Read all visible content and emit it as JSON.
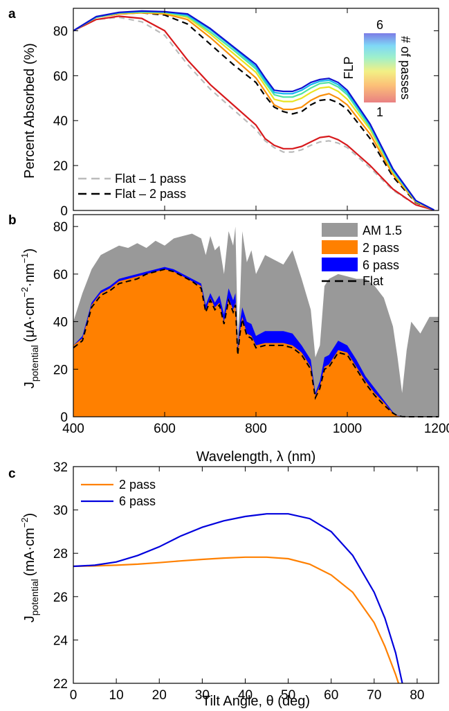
{
  "chart_data": [
    {
      "panel": "a",
      "type": "line",
      "ylabel": "Percent Absorbed (%)",
      "xlim": [
        400,
        1200
      ],
      "ylim": [
        0,
        90
      ],
      "yticks": [
        0,
        20,
        40,
        60,
        80
      ],
      "ytick_labels": [
        "0",
        "20",
        "40",
        "60",
        "80"
      ],
      "colorbar": {
        "title": "FLP",
        "side_label": "# of passes",
        "top": "6",
        "bottom": "1"
      },
      "x": [
        400,
        450,
        500,
        550,
        600,
        650,
        700,
        750,
        800,
        820,
        840,
        860,
        880,
        900,
        920,
        940,
        960,
        980,
        1000,
        1050,
        1100,
        1150,
        1190
      ],
      "series": [
        {
          "name": "Flat – 1 pass",
          "color": "#bbbbbb",
          "dash": "8 6",
          "values": [
            80,
            85,
            86,
            84,
            78,
            65,
            54,
            45,
            36,
            31,
            28,
            26,
            26,
            27,
            29,
            30.5,
            31,
            30,
            28,
            19,
            9,
            2.5,
            0.2
          ]
        },
        {
          "name": "Flat – 2 pass",
          "color": "#000000",
          "dash": "9 6",
          "values": [
            80,
            86,
            87.5,
            88,
            87,
            83,
            74,
            65,
            57,
            51,
            46,
            44,
            43,
            44,
            47,
            49,
            49.5,
            48,
            45,
            32,
            15,
            3.5,
            0.2
          ]
        },
        {
          "color": "#d7191c",
          "values": [
            80,
            85,
            86.5,
            85.5,
            80,
            67,
            56,
            47,
            38,
            32,
            29,
            27.5,
            27.5,
            28.5,
            30.5,
            32.5,
            33,
            31.5,
            29,
            20,
            9.5,
            2.5,
            0.2
          ]
        },
        {
          "color": "#f98e09",
          "values": [
            80,
            86,
            87.5,
            88,
            87.5,
            85,
            77,
            68,
            59,
            53,
            47,
            45,
            45,
            46,
            49,
            51,
            52,
            50,
            47,
            34,
            16,
            3.8,
            0.2
          ]
        },
        {
          "color": "#e8e421",
          "values": [
            80,
            86,
            87.8,
            88.2,
            88,
            86,
            78.5,
            70,
            61.5,
            55.5,
            49.5,
            48.5,
            48.5,
            50,
            52.5,
            54.5,
            55,
            53,
            49.5,
            36,
            17,
            4,
            0.2
          ]
        },
        {
          "color": "#4fe3a0",
          "values": [
            80,
            86,
            88,
            88.4,
            88.2,
            86.5,
            79.5,
            71.5,
            63,
            57,
            51.5,
            50.5,
            50.5,
            52,
            54.5,
            56.5,
            57,
            55,
            51.5,
            37,
            17.5,
            4.2,
            0.2
          ]
        },
        {
          "color": "#16b8ef",
          "values": [
            80,
            86.2,
            88,
            88.6,
            88.4,
            87,
            80.5,
            72.5,
            64,
            58,
            52.5,
            52,
            52,
            53.5,
            56,
            57.5,
            58,
            56,
            52.5,
            38,
            18,
            4.3,
            0.2
          ]
        },
        {
          "color": "#1010d0",
          "values": [
            80,
            86.3,
            88.2,
            88.8,
            88.5,
            87.5,
            81,
            73,
            65,
            59,
            53.5,
            53,
            53,
            54.5,
            57,
            58.3,
            58.8,
            57,
            53.5,
            38.5,
            18.5,
            4.4,
            0.2
          ]
        }
      ],
      "legend": [
        "Flat – 1 pass",
        "Flat – 2 pass"
      ]
    },
    {
      "panel": "b",
      "type": "area",
      "ylabel": "J_potential (μA·cm⁻²·nm⁻¹)",
      "xlabel": "Wavelength, λ (nm)",
      "xlim": [
        400,
        1200
      ],
      "ylim": [
        0,
        85
      ],
      "xticks": [
        400,
        600,
        800,
        1000,
        1200
      ],
      "xtick_labels": [
        "400",
        "600",
        "800",
        "1000",
        "1200"
      ],
      "yticks": [
        0,
        20,
        40,
        60,
        80
      ],
      "ytick_labels": [
        "0",
        "20",
        "40",
        "60",
        "80"
      ],
      "x": [
        400,
        420,
        440,
        460,
        480,
        500,
        520,
        540,
        560,
        580,
        600,
        620,
        640,
        660,
        680,
        690,
        700,
        710,
        720,
        730,
        740,
        750,
        755,
        760,
        765,
        770,
        780,
        790,
        800,
        820,
        840,
        860,
        880,
        900,
        920,
        930,
        940,
        950,
        960,
        980,
        1000,
        1020,
        1040,
        1060,
        1080,
        1100,
        1110,
        1120,
        1130,
        1140,
        1160,
        1180,
        1200
      ],
      "series": [
        {
          "name": "AM 1.5",
          "color": "#999999",
          "values": [
            40,
            52,
            62,
            68,
            70,
            72,
            71,
            73,
            71,
            74,
            72,
            75,
            76,
            77,
            75,
            68,
            76,
            70,
            72,
            60,
            78,
            72,
            80,
            35,
            48,
            78,
            65,
            70,
            60,
            68,
            66,
            64,
            70,
            58,
            45,
            25,
            30,
            55,
            58,
            60,
            59,
            58,
            58,
            55,
            50,
            38,
            25,
            10,
            28,
            40,
            35,
            42,
            42
          ]
        },
        {
          "name": "6 pass",
          "color": "#0000ff",
          "values": [
            30,
            34,
            48,
            53,
            55,
            58,
            59,
            60,
            61,
            62,
            63,
            62,
            60,
            58,
            56,
            47,
            52,
            48,
            51,
            43,
            54,
            49,
            52,
            29,
            40,
            46,
            40,
            39,
            34,
            36,
            36,
            36,
            35,
            30,
            24,
            10,
            15,
            25,
            26,
            32,
            30,
            24,
            17,
            12,
            7,
            2,
            0.5,
            0.2,
            0.1,
            0,
            0,
            0,
            0
          ]
        },
        {
          "name": "2 pass",
          "color": "#ff8000",
          "values": [
            30,
            33,
            47,
            52,
            54,
            57,
            58,
            59,
            60,
            61,
            62,
            61,
            59,
            57,
            55,
            45,
            50,
            46,
            48,
            40,
            50,
            45,
            48,
            27,
            36,
            42,
            35,
            34,
            30,
            31,
            31,
            31,
            30,
            27,
            21,
            9,
            13,
            21,
            22,
            28,
            27,
            21,
            15,
            10,
            6,
            1.5,
            0.4,
            0.1,
            0,
            0,
            0,
            0,
            0
          ]
        },
        {
          "name": "Flat",
          "color": "#000000",
          "dash": "8 5",
          "values": [
            29,
            32,
            46,
            51,
            53,
            56,
            57,
            58,
            60,
            61,
            62,
            61,
            59,
            57,
            54,
            44,
            49,
            45,
            47,
            39,
            49,
            44,
            47,
            26,
            35,
            41,
            34,
            33,
            29,
            30,
            30,
            30,
            29,
            26,
            20,
            8,
            12,
            20,
            21,
            27,
            26,
            20,
            14,
            9,
            5,
            1.5,
            0.4,
            0.1,
            0,
            0,
            0,
            0,
            0
          ]
        }
      ],
      "legend": [
        "AM 1.5",
        "2 pass",
        "6 pass",
        "Flat"
      ]
    },
    {
      "panel": "c",
      "type": "line",
      "ylabel": "J_potential (mA·cm⁻²)",
      "xlabel": "Tilt Angle, θ (deg)",
      "xlim": [
        0,
        85
      ],
      "ylim": [
        22,
        32
      ],
      "xticks": [
        0,
        10,
        20,
        30,
        40,
        50,
        60,
        70,
        80
      ],
      "xtick_labels": [
        "0",
        "10",
        "20",
        "30",
        "40",
        "50",
        "60",
        "70",
        "80"
      ],
      "yticks": [
        22,
        24,
        26,
        28,
        30,
        32
      ],
      "ytick_labels": [
        "22",
        "24",
        "26",
        "28",
        "30",
        "32"
      ],
      "series": [
        {
          "name": "2 pass",
          "color": "#ff8000",
          "x": [
            0,
            5,
            10,
            15,
            20,
            25,
            30,
            35,
            40,
            45,
            50,
            55,
            60,
            65,
            70,
            72.5,
            75,
            76
          ],
          "values": [
            27.4,
            27.42,
            27.45,
            27.5,
            27.57,
            27.65,
            27.72,
            27.78,
            27.82,
            27.82,
            27.75,
            27.5,
            27.0,
            26.2,
            24.8,
            23.7,
            22.4,
            21.8
          ]
        },
        {
          "name": "6 pass",
          "color": "#0000dd",
          "x": [
            0,
            5,
            10,
            15,
            20,
            25,
            30,
            35,
            40,
            45,
            50,
            55,
            60,
            65,
            70,
            72.5,
            75,
            77
          ],
          "values": [
            27.4,
            27.45,
            27.6,
            27.9,
            28.3,
            28.8,
            29.2,
            29.5,
            29.7,
            29.82,
            29.82,
            29.6,
            29.0,
            27.9,
            26.2,
            25.0,
            23.4,
            21.6
          ]
        }
      ],
      "legend": [
        "2 pass",
        "6 pass"
      ]
    }
  ],
  "labels": {
    "panel_a": "a",
    "panel_b": "b",
    "panel_c": "c",
    "a_ylabel": "Percent Absorbed (%)",
    "b_ylabel_main": "J",
    "b_ylabel_sub": "potential",
    "b_ylabel_unit_1": "(μA·cm",
    "b_ylabel_sup_1": "−2",
    "b_ylabel_unit_2": "·nm",
    "b_ylabel_sup_2": "−1",
    "b_ylabel_unit_3": ")",
    "b_xlabel": "Wavelength, λ (nm)",
    "c_ylabel_main": "J",
    "c_ylabel_sub": "potential",
    "c_ylabel_unit": "(mA·cm",
    "c_ylabel_sup": "−2",
    "c_ylabel_close": ")",
    "c_xlabel": "Tilt Angle, θ (deg)",
    "colorbar_flp": "FLP",
    "colorbar_passes": "# of passes",
    "colorbar_top": "6",
    "colorbar_bottom": "1",
    "legend_a_1": "Flat – 1 pass",
    "legend_a_2": "Flat – 2 pass",
    "legend_b_1": "AM 1.5",
    "legend_b_2": "2 pass",
    "legend_b_3": "6 pass",
    "legend_b_4": "Flat",
    "legend_c_1": "2 pass",
    "legend_c_2": "6 pass"
  }
}
